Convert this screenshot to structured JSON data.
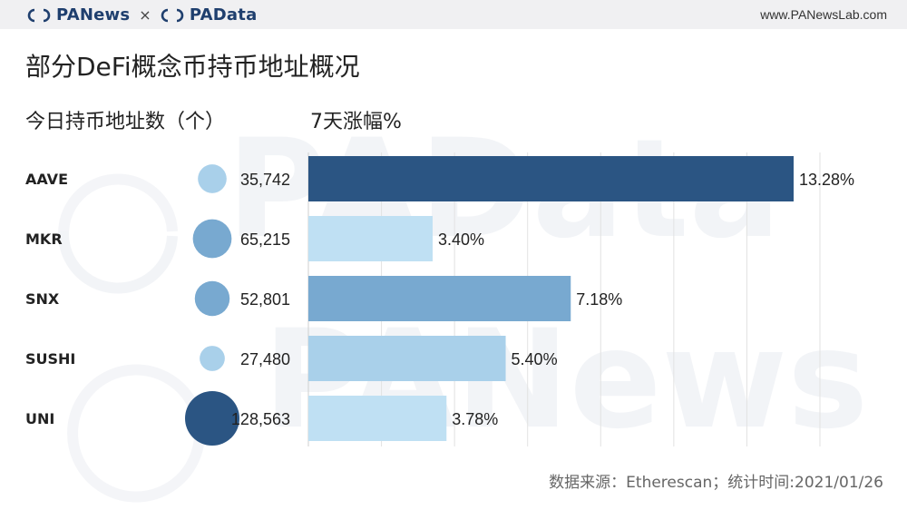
{
  "header": {
    "brand_left": "PANews",
    "brand_sep": "×",
    "brand_right": "PAData",
    "site": "www.PANewsLab.com"
  },
  "title": "部分DeFi概念币持币地址概况",
  "left_heading": "今日持币地址数（个）",
  "right_heading": "7天涨幅%",
  "source": "数据来源：Etherescan；统计时间:2021/01/26",
  "colors": {
    "dark": "#2b5583",
    "mid": "#78a9d0",
    "light": "#a9d0ea",
    "pale": "#bfe0f3",
    "grid": "#e2e2e2"
  },
  "chart_data": [
    {
      "type": "scatter",
      "title": "今日持币地址数（个）",
      "categories": [
        "AAVE",
        "MKR",
        "SNX",
        "SUSHI",
        "UNI"
      ],
      "values": [
        35742,
        65215,
        52801,
        27480,
        128563
      ],
      "labels": [
        "35,742",
        "65,215",
        "52,801",
        "27,480",
        "128,563"
      ],
      "encoding": "bubble size"
    },
    {
      "type": "bar",
      "orientation": "horizontal",
      "title": "7天涨幅%",
      "categories": [
        "AAVE",
        "MKR",
        "SNX",
        "SUSHI",
        "UNI"
      ],
      "values": [
        13.28,
        3.4,
        7.18,
        5.4,
        3.78
      ],
      "labels": [
        "13.28%",
        "3.40%",
        "7.18%",
        "5.40%",
        "3.78%"
      ],
      "xlim": [
        0,
        14
      ]
    }
  ]
}
